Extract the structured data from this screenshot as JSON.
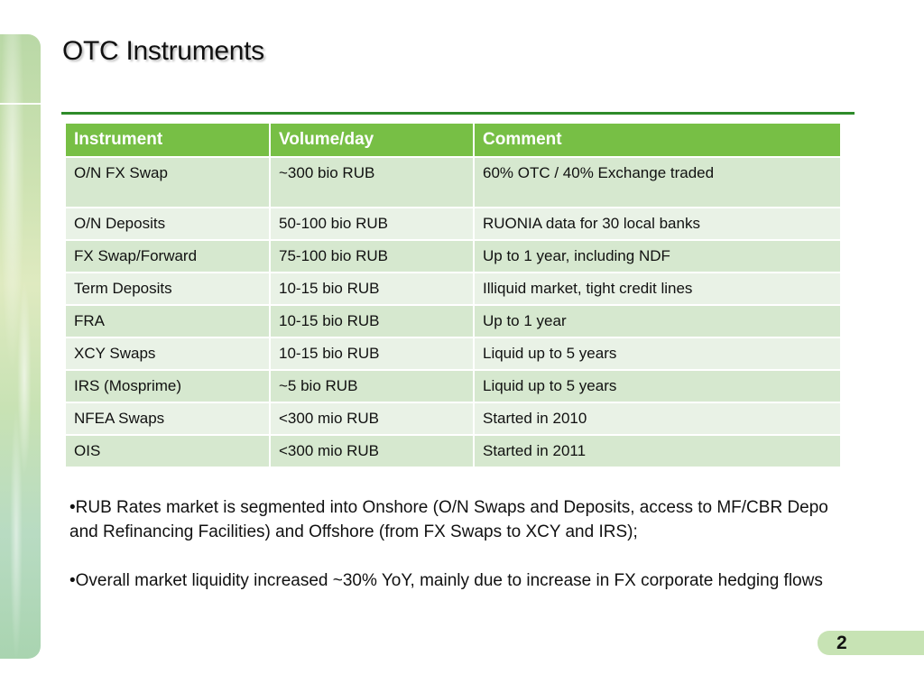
{
  "slide": {
    "title": "OTC Instruments",
    "page_number": "2"
  },
  "colors": {
    "header_bg": "#77bf45",
    "rule": "#2e8b2a",
    "row_odd": "#d6e8cf",
    "row_even": "#e9f2e6",
    "page_pill": "#c7e3b4"
  },
  "table": {
    "headers": [
      "Instrument",
      "Volume/day",
      "Comment"
    ],
    "rows": [
      [
        "O/N FX Swap",
        "~300 bio RUB",
        "60% OTC / 40% Exchange traded"
      ],
      [
        "O/N Deposits",
        "50-100 bio RUB",
        "RUONIA data for 30 local banks"
      ],
      [
        "FX Swap/Forward",
        "75-100 bio RUB",
        "Up to 1 year, including NDF"
      ],
      [
        "Term Deposits",
        "10-15 bio RUB",
        "Illiquid market, tight credit lines"
      ],
      [
        "FRA",
        "10-15 bio RUB",
        "Up to 1 year"
      ],
      [
        "XCY Swaps",
        "10-15 bio RUB",
        "Liquid up to 5 years"
      ],
      [
        "IRS (Mosprime)",
        "~5 bio RUB",
        "Liquid up to 5 years"
      ],
      [
        "NFEA Swaps",
        "<300 mio RUB",
        "Started in 2010"
      ],
      [
        "OIS",
        "<300 mio RUB",
        "Started in 2011"
      ]
    ]
  },
  "bullets": [
    "•RUB Rates market is segmented into Onshore (O/N Swaps and Deposits, access to MF/CBR Depo and Refinancing Facilities) and Offshore (from FX Swaps to XCY and IRS);",
    "•Overall market liquidity increased ~30% YoY, mainly due to increase in FX corporate hedging flows"
  ]
}
